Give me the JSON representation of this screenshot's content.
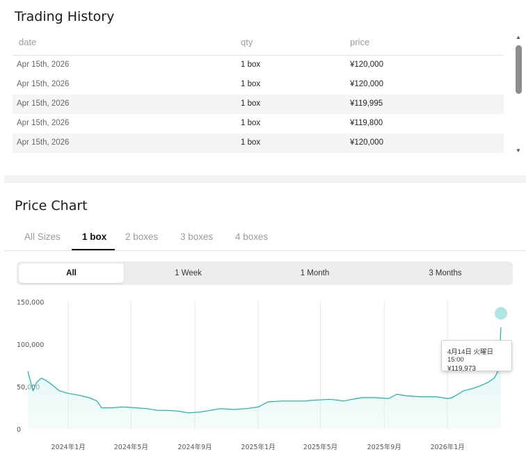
{
  "trading_history": {
    "title": "Trading History",
    "columns": {
      "date": "date",
      "qty": "qty",
      "price": "price"
    },
    "rows": [
      {
        "date": "Apr 15th, 2026",
        "qty": "1 box",
        "price": "¥120,000"
      },
      {
        "date": "Apr 15th, 2026",
        "qty": "1 box",
        "price": "¥120,000"
      },
      {
        "date": "Apr 15th, 2026",
        "qty": "1 box",
        "price": "¥119,995"
      },
      {
        "date": "Apr 15th, 2026",
        "qty": "1 box",
        "price": "¥119,800"
      },
      {
        "date": "Apr 15th, 2026",
        "qty": "1 box",
        "price": "¥120,000"
      }
    ]
  },
  "price_chart": {
    "title": "Price Chart",
    "size_tabs": [
      "All Sizes",
      "1 box",
      "2 boxes",
      "3 boxes",
      "4 boxes"
    ],
    "active_size_tab": "1 box",
    "periods": [
      "All",
      "1 Week",
      "1 Month",
      "3 Months"
    ],
    "active_period": "All",
    "tooltip": {
      "date": "4月14日 火曜日 15:00",
      "value": "¥119,973"
    }
  },
  "colors": {
    "line": "#1ab3a6",
    "fill": "#d8f3f0",
    "marker": "#9adfd8"
  },
  "chart_data": {
    "type": "area",
    "title": "",
    "xlabel": "",
    "ylabel": "",
    "x_tick_labels": [
      "2024年1月",
      "2024年5月",
      "2024年9月",
      "2025年1月",
      "2025年5月",
      "2025年9月",
      "2026年1月"
    ],
    "y_tick_labels": [
      "150,000",
      "100,000",
      "50,000",
      "0"
    ],
    "ylim": [
      0,
      150000
    ],
    "grid": "vertical",
    "series": [
      {
        "x": [
          "2023-10-15",
          "2023-10-25",
          "2023-11-01",
          "2023-11-10",
          "2023-11-20",
          "2023-12-01",
          "2023-12-15",
          "2024-01-01",
          "2024-01-20",
          "2024-02-10",
          "2024-02-25",
          "2024-03-05",
          "2024-03-25",
          "2024-04-15",
          "2024-05-10",
          "2024-06-01",
          "2024-06-20",
          "2024-07-10",
          "2024-08-01",
          "2024-08-20",
          "2024-09-10",
          "2024-10-01",
          "2024-10-20",
          "2024-11-15",
          "2024-12-10",
          "2025-01-01",
          "2025-01-20",
          "2025-02-15",
          "2025-03-10",
          "2025-04-01",
          "2025-04-20",
          "2025-05-20",
          "2025-06-15",
          "2025-07-01",
          "2025-07-20",
          "2025-08-15",
          "2025-09-10",
          "2025-09-25",
          "2025-10-15",
          "2025-11-10",
          "2025-12-10",
          "2026-01-01",
          "2026-01-10",
          "2026-02-01",
          "2026-02-20",
          "2026-03-05",
          "2026-03-20",
          "2026-04-01",
          "2026-04-10",
          "2026-04-14"
        ],
        "values": [
          68000,
          45000,
          55000,
          60000,
          57000,
          52000,
          45000,
          42000,
          40000,
          37000,
          33000,
          25000,
          25000,
          26000,
          25000,
          24000,
          22000,
          22000,
          21000,
          19000,
          20000,
          22000,
          24000,
          23000,
          24000,
          26000,
          32000,
          33000,
          33000,
          33000,
          34000,
          35000,
          33000,
          35000,
          37000,
          37000,
          36000,
          41000,
          39000,
          38000,
          38000,
          36000,
          37000,
          45000,
          48000,
          51000,
          55000,
          60000,
          70000,
          119973
        ]
      }
    ]
  }
}
